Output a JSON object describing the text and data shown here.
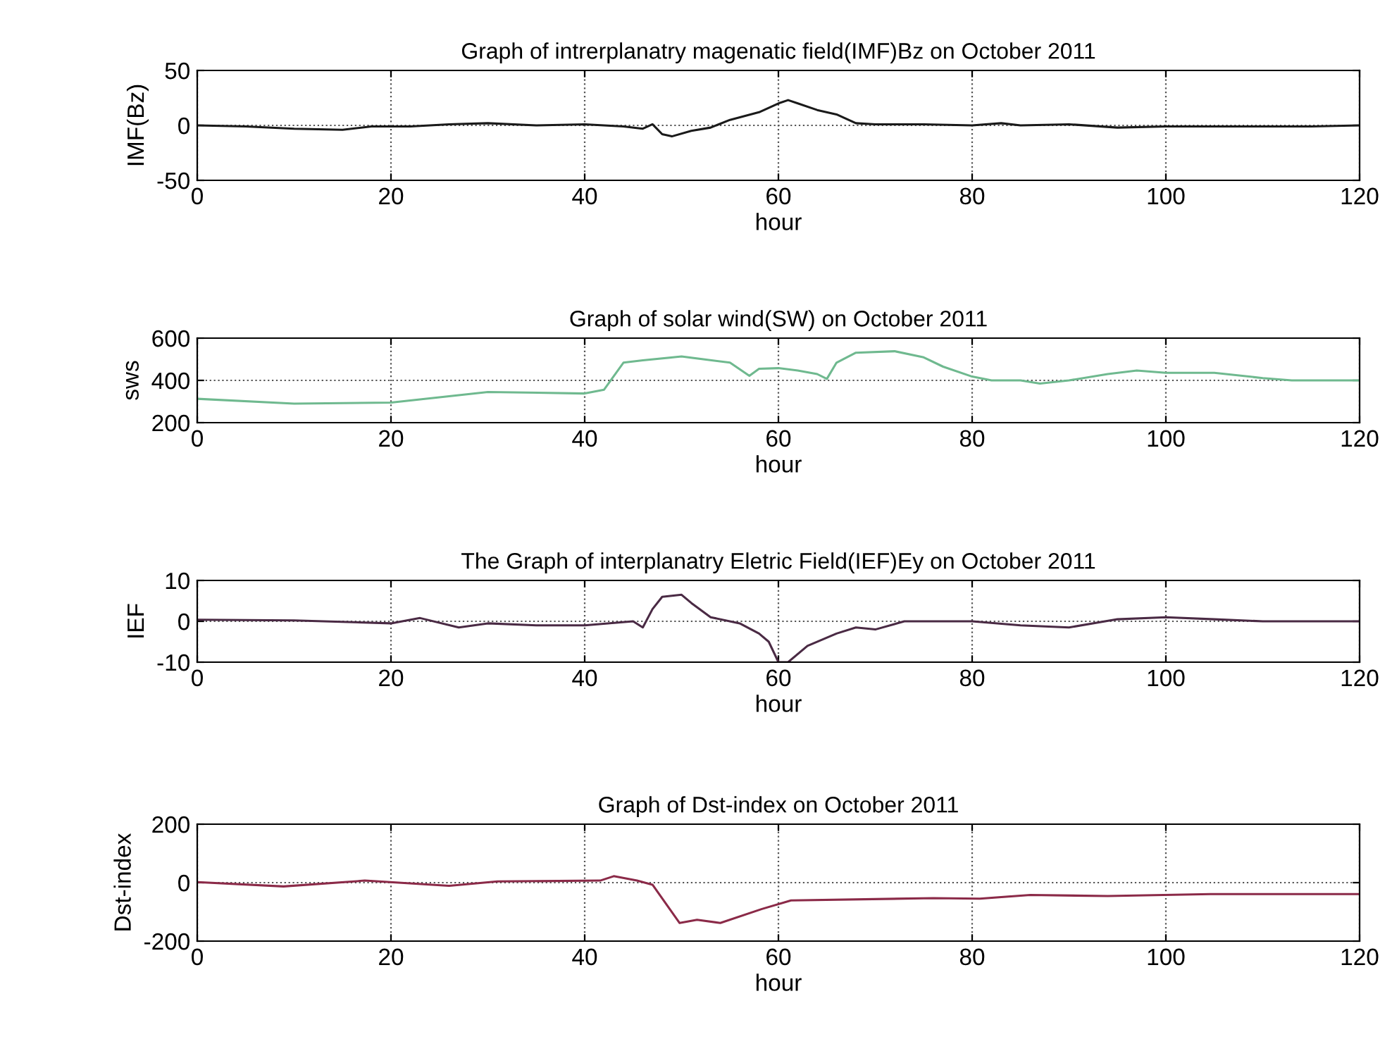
{
  "chart_data": [
    {
      "type": "line",
      "title": "Graph of intrerplanatry magenatic field(IMF)Bz on October 2011",
      "xlabel": "hour",
      "ylabel": "IMF(Bz)",
      "xlim": [
        0,
        120
      ],
      "xticks": [
        0,
        20,
        40,
        60,
        80,
        100,
        120
      ],
      "ylim": [
        -50,
        50
      ],
      "yticks": [
        -50,
        0,
        50
      ],
      "grid": true,
      "series": [
        {
          "color": "#1a1a1a",
          "x": [
            0,
            5,
            10,
            15,
            18,
            22,
            26,
            30,
            35,
            40,
            44,
            46,
            47,
            48,
            49,
            51,
            53,
            55,
            58,
            60,
            61,
            62,
            64,
            66,
            68,
            70,
            75,
            80,
            83,
            85,
            90,
            95,
            100,
            105,
            110,
            115,
            120
          ],
          "values": [
            0,
            -1,
            -3,
            -4,
            -1,
            -1,
            1,
            2,
            0,
            1,
            -1,
            -3,
            1,
            -8,
            -10,
            -5,
            -2,
            5,
            12,
            20,
            23,
            20,
            14,
            10,
            2,
            1,
            1,
            0,
            2,
            0,
            1,
            -2,
            -1,
            -1,
            -1,
            -1,
            0
          ]
        }
      ]
    },
    {
      "type": "line",
      "title": "Graph of solar wind(SW) on October 2011",
      "xlabel": "hour",
      "ylabel": "sws",
      "xlim": [
        0,
        120
      ],
      "xticks": [
        0,
        20,
        40,
        60,
        80,
        100,
        120
      ],
      "ylim": [
        200,
        600
      ],
      "yticks": [
        200,
        400,
        600
      ],
      "grid": true,
      "series": [
        {
          "color": "#6fb98f",
          "x": [
            0,
            10,
            20,
            25,
            30,
            40,
            42,
            44,
            46,
            50,
            55,
            57,
            58,
            60,
            62,
            64,
            65,
            66,
            68,
            72,
            75,
            77,
            80,
            82,
            85,
            87,
            90,
            94,
            97,
            100,
            105,
            110,
            113,
            120
          ],
          "values": [
            313,
            290,
            295,
            320,
            345,
            338,
            356,
            484,
            495,
            513,
            484,
            422,
            455,
            458,
            447,
            430,
            407,
            484,
            531,
            538,
            509,
            465,
            418,
            400,
            400,
            385,
            400,
            430,
            447,
            436,
            436,
            411,
            400,
            400
          ]
        }
      ]
    },
    {
      "type": "line",
      "title": "The Graph of interplanatry Eletric Field(IEF)Ey on October 2011",
      "xlabel": "hour",
      "ylabel": "IEF",
      "xlim": [
        0,
        120
      ],
      "xticks": [
        0,
        20,
        40,
        60,
        80,
        100,
        120
      ],
      "ylim": [
        -10,
        10
      ],
      "yticks": [
        -10,
        0,
        10
      ],
      "grid": true,
      "series": [
        {
          "color": "#4a2a44",
          "x": [
            0,
            10,
            20,
            23,
            27,
            30,
            35,
            40,
            45,
            46,
            47,
            48,
            50,
            51,
            53,
            56,
            58,
            59,
            60,
            61,
            63,
            66,
            68,
            70,
            73,
            78,
            80,
            85,
            90,
            95,
            100,
            105,
            110,
            120
          ],
          "values": [
            0.4,
            0.2,
            -0.5,
            0.8,
            -1.5,
            -0.5,
            -1,
            -1,
            0,
            -1.5,
            3,
            6,
            6.5,
            4.5,
            1,
            -0.5,
            -3,
            -5,
            -10,
            -10,
            -6,
            -3,
            -1.5,
            -2,
            0,
            0,
            0,
            -1,
            -1.5,
            0.5,
            1,
            0.5,
            0,
            0
          ]
        }
      ]
    },
    {
      "type": "line",
      "title": "Graph of Dst-index on October 2011",
      "xlabel": "hour",
      "ylabel": "Dst-index",
      "xlim": [
        0,
        120
      ],
      "xticks": [
        0,
        20,
        40,
        60,
        80,
        100,
        120
      ],
      "ylim": [
        -200,
        200
      ],
      "yticks": [
        -200,
        0,
        200
      ],
      "grid": true,
      "series": [
        {
          "color": "#8b2a48",
          "x": [
            0,
            8.9,
            17.3,
            26,
            31,
            41.6,
            43,
            45.4,
            47,
            49.8,
            51.6,
            54,
            58.3,
            61.3,
            76,
            80.8,
            86,
            94,
            104.6,
            118,
            120
          ],
          "values": [
            2,
            -13,
            7,
            -11,
            4,
            7,
            22,
            7,
            -7,
            -138,
            -127,
            -138,
            -90,
            -61,
            -53,
            -55,
            -42,
            -46,
            -39,
            -39,
            -39
          ]
        }
      ]
    }
  ]
}
